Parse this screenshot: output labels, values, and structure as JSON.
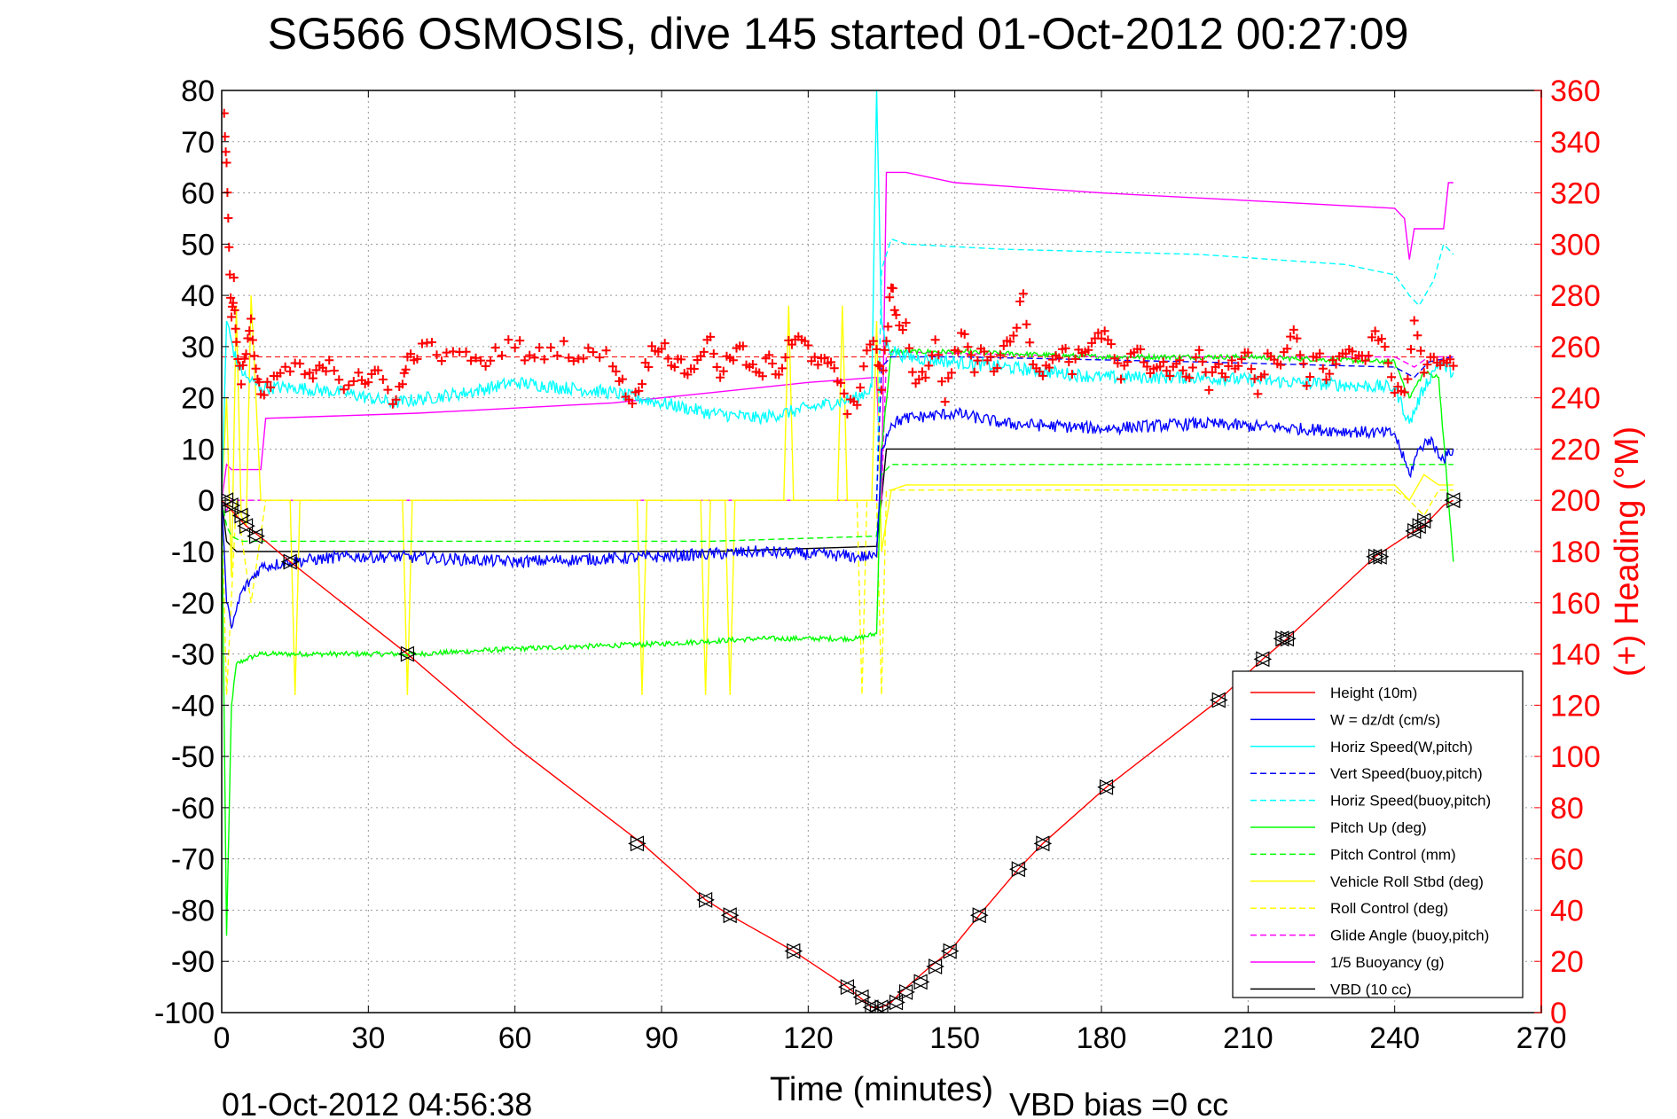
{
  "chart_data": {
    "type": "line",
    "title": "SG566 OSMOSIS, dive 145 started 01-Oct-2012 00:27:09",
    "xlabel": "Time (minutes)",
    "ylabel_right": "(+) Heading (°M)",
    "xlim": [
      0,
      270
    ],
    "ylim": [
      -100,
      80
    ],
    "ylim_right": [
      0,
      360
    ],
    "x_ticks": [
      "0",
      "30",
      "60",
      "90",
      "120",
      "150",
      "180",
      "210",
      "240",
      "270"
    ],
    "y_ticks": [
      "-100",
      "-90",
      "-80",
      "-70",
      "-60",
      "-50",
      "-40",
      "-30",
      "-20",
      "-10",
      "0",
      "10",
      "20",
      "30",
      "40",
      "50",
      "60",
      "70",
      "80"
    ],
    "y_ticks_right": [
      "0",
      "20",
      "40",
      "60",
      "80",
      "100",
      "120",
      "140",
      "160",
      "180",
      "200",
      "220",
      "240",
      "260",
      "280",
      "300",
      "320",
      "340",
      "360"
    ],
    "grid": true,
    "legend_position": "bottom-right",
    "footer_left": "01-Oct-2012 04:56:38",
    "footer_right": "VBD bias =0 cc",
    "colors": {
      "height": "#ff0000",
      "w": "#0000ff",
      "horiz_speed_w": "#00ffff",
      "vert_speed_buoy": "#0000ff",
      "horiz_speed_buoy": "#00ffff",
      "pitch_up": "#00ff00",
      "pitch_control": "#00ff00",
      "vehicle_roll": "#ffff00",
      "roll_control": "#ffff00",
      "glide_angle": "#ff00ff",
      "buoyancy": "#ff00ff",
      "vbd": "#000000",
      "heading": "#ff0000"
    },
    "series": [
      {
        "key": "height",
        "name": "Height (10m)",
        "color": "#ff0000",
        "dash": "solid",
        "x": [
          0,
          1,
          5,
          9,
          14,
          38,
          60,
          86,
          99,
          104,
          117,
          128,
          133,
          135,
          137,
          139,
          145,
          149,
          155,
          163,
          168,
          181,
          204,
          213,
          218,
          236,
          244,
          246,
          250,
          252
        ],
        "y": [
          0,
          -1,
          -5,
          -8,
          -12,
          -30,
          -48,
          -67,
          -78,
          -81,
          -88,
          -95,
          -99,
          -99,
          -98,
          -96,
          -91,
          -88,
          -81,
          -72,
          -67,
          -56,
          -39,
          -31,
          -27,
          -11,
          -6,
          -5,
          -1,
          0
        ]
      },
      {
        "key": "w",
        "name": "W = dz/dt (cm/s)",
        "color": "#0000ff",
        "dash": "solid",
        "noise": 1.2,
        "x": [
          0,
          1,
          2,
          4,
          8,
          14,
          25,
          35,
          60,
          90,
          110,
          130,
          134,
          135,
          137,
          140,
          150,
          160,
          180,
          200,
          220,
          240,
          243,
          245,
          247,
          250,
          252
        ],
        "y": [
          0,
          -20,
          -25,
          -18,
          -13,
          -12,
          -11,
          -11,
          -12,
          -11,
          -10,
          -11,
          -11,
          10,
          15,
          16,
          17,
          15,
          14,
          15,
          14,
          13,
          5,
          10,
          12,
          8,
          10
        ]
      },
      {
        "key": "horiz_speed_w",
        "name": "Horiz Speed(W,pitch)",
        "color": "#00ffff",
        "dash": "solid",
        "noise": 1.3,
        "x": [
          0,
          1,
          3,
          5,
          8,
          15,
          25,
          35,
          50,
          60,
          80,
          100,
          110,
          120,
          130,
          133,
          134,
          135,
          136,
          140,
          150,
          160,
          180,
          200,
          220,
          240,
          243,
          246,
          249,
          252
        ],
        "y": [
          0,
          35,
          27,
          24,
          22,
          22,
          21,
          19,
          21,
          23,
          21,
          17,
          16,
          18,
          20,
          22,
          80,
          35,
          30,
          28,
          27,
          26,
          24,
          24,
          23,
          22,
          15,
          22,
          27,
          25
        ]
      },
      {
        "key": "vert_speed_buoy",
        "name": "Vert Speed(buoy,pitch)",
        "color": "#0000ff",
        "dash": "dash",
        "x": [
          134,
          135,
          137,
          150,
          200,
          240,
          244,
          247,
          252
        ],
        "y": [
          0,
          26,
          28,
          28,
          27,
          26,
          24,
          27,
          28
        ]
      },
      {
        "key": "horiz_speed_buoy",
        "name": "Horiz Speed(buoy,pitch)",
        "color": "#00ffff",
        "dash": "dash",
        "x": [
          134,
          135,
          137,
          140,
          160,
          200,
          230,
          240,
          243,
          245,
          248,
          250,
          252
        ],
        "y": [
          0,
          45,
          51,
          50,
          49,
          48,
          46,
          44,
          40,
          38,
          43,
          50,
          48
        ]
      },
      {
        "key": "pitch_up",
        "name": "Pitch Up (deg)",
        "color": "#00ff00",
        "dash": "solid",
        "noise": 0.5,
        "x": [
          0,
          1,
          2,
          3,
          5,
          8,
          12,
          20,
          40,
          60,
          90,
          110,
          130,
          134,
          135,
          137,
          150,
          180,
          210,
          240,
          243,
          246,
          249,
          252
        ],
        "y": [
          0,
          -85,
          -40,
          -32,
          -31,
          -30,
          -30,
          -30,
          -30,
          -29,
          -28,
          -27,
          -27,
          -26,
          10,
          29,
          29,
          28,
          28,
          27,
          20,
          25,
          24,
          -12
        ]
      },
      {
        "key": "pitch_control",
        "name": "Pitch Control (mm)",
        "color": "#00ff00",
        "dash": "dash",
        "x": [
          0,
          1,
          2,
          4,
          10,
          100,
          134,
          135,
          137,
          200,
          240,
          252
        ],
        "y": [
          0,
          -5,
          -7,
          -8,
          -8,
          -8,
          -7,
          5,
          7,
          7,
          7,
          7
        ]
      },
      {
        "key": "vehicle_roll",
        "name": "Vehicle Roll Stbd (deg)",
        "color": "#ffff00",
        "dash": "solid",
        "x": [
          0,
          1,
          2,
          3,
          4,
          5,
          6,
          8,
          10,
          14,
          15,
          16,
          30,
          37,
          38,
          39,
          60,
          85,
          86,
          87,
          98,
          99,
          100,
          103,
          104,
          105,
          115,
          116,
          117,
          126,
          127,
          128,
          133,
          134,
          135,
          137,
          140,
          160,
          200,
          240,
          243,
          246,
          249,
          252
        ],
        "y": [
          0,
          20,
          -15,
          38,
          -3,
          -5,
          40,
          0,
          0,
          0,
          -38,
          0,
          0,
          0,
          -38,
          0,
          0,
          0,
          -38,
          0,
          0,
          -38,
          0,
          0,
          -38,
          0,
          0,
          38,
          0,
          0,
          38,
          0,
          0,
          35,
          -10,
          2,
          3,
          3,
          3,
          3,
          0,
          5,
          3,
          3
        ]
      },
      {
        "key": "roll_control",
        "name": "Roll Control (deg)",
        "color": "#ffff00",
        "dash": "dash",
        "x": [
          0,
          1,
          3,
          6,
          9,
          12,
          14,
          15,
          16,
          130,
          131,
          132,
          133,
          134,
          135,
          136,
          138,
          160,
          200,
          240,
          243,
          246,
          249,
          252
        ],
        "y": [
          0,
          -38,
          0,
          -20,
          0,
          0,
          0,
          0,
          0,
          0,
          -38,
          0,
          0,
          0,
          -38,
          2,
          2,
          2,
          2,
          2,
          0,
          -3,
          2,
          2
        ]
      },
      {
        "key": "glide_angle",
        "name": "Glide Angle (buoy,pitch)",
        "color": "#ff00ff",
        "dash": "dash",
        "x": [
          0,
          1,
          2,
          134,
          135,
          136,
          137,
          180,
          240,
          244,
          247,
          252
        ],
        "y": [
          0,
          -2,
          0,
          0,
          0,
          28,
          29,
          28,
          28,
          26,
          28,
          28
        ]
      },
      {
        "key": "buoyancy",
        "name": "1/5 Buoyancy (g)",
        "color": "#ff00ff",
        "dash": "solid",
        "x": [
          0,
          1,
          2,
          4,
          5,
          6,
          8,
          9,
          40,
          80,
          100,
          120,
          134,
          135,
          136,
          140,
          150,
          180,
          200,
          220,
          240,
          242,
          243,
          244,
          245,
          247,
          250,
          251,
          252
        ],
        "y": [
          0,
          7,
          6,
          6,
          6,
          6,
          6,
          16,
          17,
          19,
          21,
          23,
          24,
          0,
          64,
          64,
          62,
          60,
          59,
          58,
          57,
          55,
          47,
          53,
          53,
          53,
          53,
          62,
          62
        ]
      },
      {
        "key": "vbd",
        "name": "VBD (10 cc)",
        "color": "#000000",
        "dash": "solid",
        "x": [
          0,
          1,
          2,
          3,
          5,
          10,
          50,
          100,
          134,
          135,
          136,
          140,
          200,
          240,
          241,
          242,
          252
        ],
        "y": [
          0,
          -8,
          -9,
          -10,
          -10,
          -10,
          -10,
          -10,
          -9,
          0,
          10,
          10,
          10,
          10,
          10,
          10,
          10
        ]
      }
    ],
    "heading": {
      "name": "(+) Heading (°M)",
      "color": "#ff0000",
      "reference": 256,
      "x": [
        0.5,
        1,
        1.5,
        2,
        2.5,
        3,
        4,
        5,
        6,
        7,
        8,
        10,
        12,
        15,
        18,
        20,
        22,
        25,
        28,
        30,
        32,
        35,
        37,
        38,
        40,
        43,
        46,
        50,
        53,
        56,
        60,
        63,
        66,
        70,
        73,
        76,
        80,
        82,
        84,
        86,
        88,
        90,
        92,
        94,
        96,
        98,
        100,
        102,
        104,
        106,
        108,
        110,
        112,
        114,
        116,
        118,
        120,
        122,
        124,
        126,
        128,
        130,
        132,
        134,
        135,
        136,
        137,
        138,
        140,
        142,
        144,
        146,
        148,
        150,
        152,
        154,
        156,
        158,
        160,
        162,
        164,
        166,
        168,
        170,
        172,
        174,
        176,
        178,
        180,
        182,
        184,
        186,
        188,
        190,
        192,
        194,
        196,
        198,
        200,
        202,
        204,
        206,
        208,
        210,
        212,
        214,
        216,
        218,
        220,
        222,
        224,
        226,
        228,
        230,
        232,
        234,
        236,
        238,
        240,
        242,
        244,
        246,
        248,
        250,
        252
      ],
      "y": [
        350,
        330,
        300,
        270,
        285,
        260,
        245,
        260,
        270,
        250,
        240,
        245,
        250,
        252,
        248,
        250,
        255,
        245,
        250,
        245,
        250,
        240,
        245,
        255,
        258,
        260,
        255,
        258,
        252,
        258,
        262,
        255,
        258,
        260,
        255,
        258,
        255,
        245,
        238,
        248,
        258,
        262,
        255,
        252,
        250,
        258,
        262,
        250,
        255,
        260,
        252,
        248,
        255,
        250,
        262,
        265,
        258,
        252,
        255,
        248,
        235,
        240,
        258,
        260,
        245,
        262,
        285,
        270,
        268,
        245,
        250,
        262,
        240,
        258,
        265,
        252,
        260,
        250,
        262,
        265,
        280,
        255,
        248,
        255,
        260,
        252,
        258,
        262,
        265,
        260,
        248,
        255,
        258,
        250,
        255,
        250,
        252,
        250,
        258,
        245,
        252,
        250,
        255,
        258,
        242,
        255,
        252,
        262,
        265,
        245,
        258,
        248,
        255,
        260,
        258,
        252,
        265,
        258,
        245,
        240,
        270,
        250,
        258,
        252,
        255
      ]
    },
    "markers": {
      "x": [
        1,
        2,
        4,
        5,
        7,
        14,
        38,
        85,
        99,
        104,
        117,
        128,
        131,
        133,
        134,
        135,
        138,
        140,
        143,
        146,
        149,
        155,
        163,
        168,
        181,
        204,
        213,
        217,
        218,
        236,
        237,
        244,
        245,
        246,
        252
      ],
      "y": [
        0,
        -1,
        -3,
        -5,
        -7,
        -12,
        -30,
        -67,
        -78,
        -81,
        -88,
        -95,
        -97,
        -99,
        -100,
        -99,
        -98,
        -96,
        -94,
        -91,
        -88,
        -81,
        -72,
        -67,
        -56,
        -39,
        -31,
        -27,
        -27,
        -11,
        -11,
        -6,
        -5,
        -4,
        0
      ]
    }
  }
}
